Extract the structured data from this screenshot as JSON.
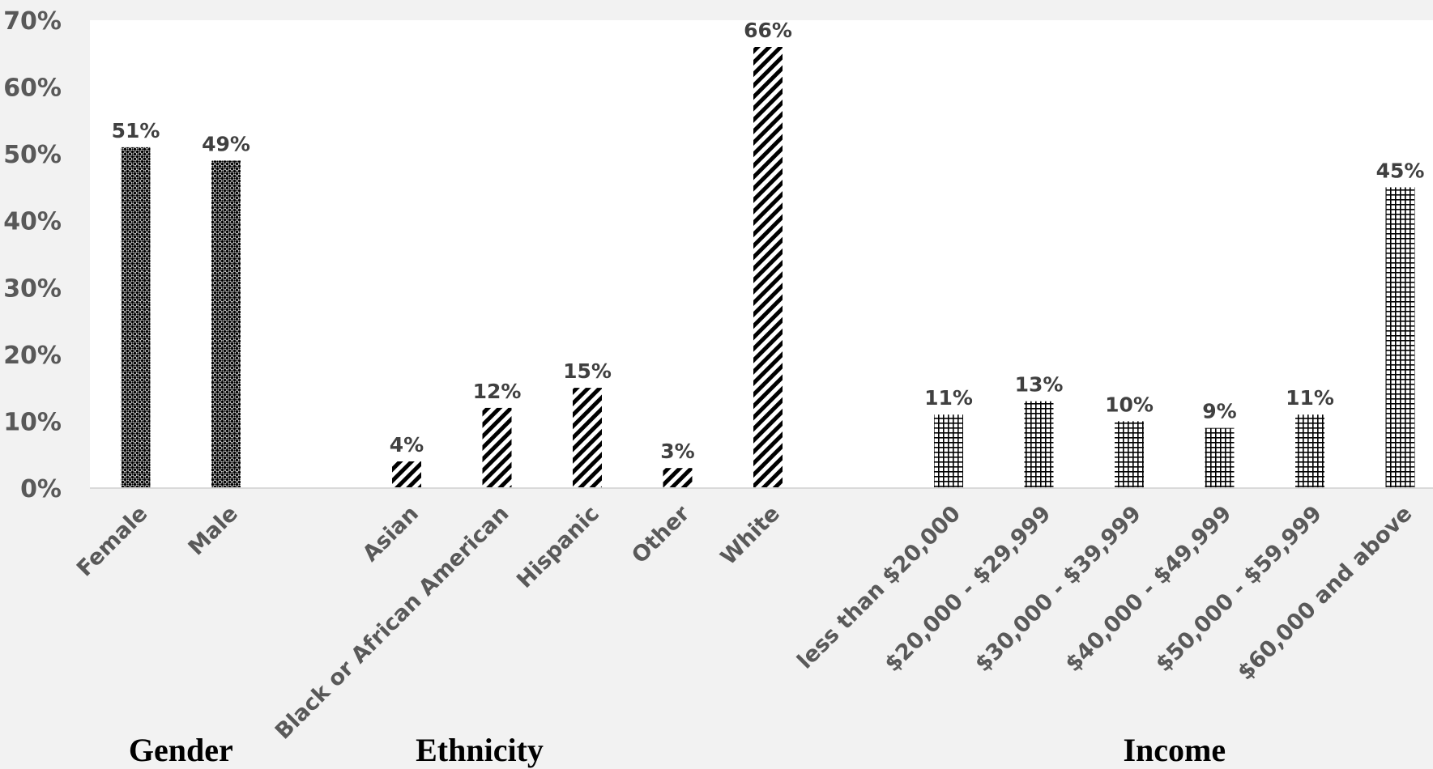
{
  "chart_data": {
    "type": "bar",
    "categories": [
      "Female",
      "Male",
      "Asian",
      "Black or African American",
      "Hispanic",
      "Other",
      "White",
      "less than $20,000",
      "$20,000 - $29,999",
      "$30,000 - $39,999",
      "$40,000 - $49,999",
      "$50,000 - $59,999",
      "$60,000 and above"
    ],
    "values": [
      51,
      49,
      4,
      12,
      15,
      3,
      66,
      11,
      13,
      10,
      9,
      11,
      45
    ],
    "data_labels": [
      "51%",
      "49%",
      "4%",
      "12%",
      "15%",
      "3%",
      "66%",
      "11%",
      "13%",
      "10%",
      "9%",
      "11%",
      "45%"
    ],
    "groups": [
      {
        "name": "Gender",
        "categories": [
          "Female",
          "Male"
        ],
        "pattern": "dots"
      },
      {
        "name": "Ethnicity",
        "categories": [
          "Asian",
          "Black or African American",
          "Hispanic",
          "Other",
          "White"
        ],
        "pattern": "diagonal-stripes"
      },
      {
        "name": "Income",
        "categories": [
          "less than $20,000",
          "$20,000 - $29,999",
          "$30,000 - $39,999",
          "$40,000 - $49,999",
          "$50,000 - $59,999",
          "$60,000 and above"
        ],
        "pattern": "grid"
      }
    ],
    "y_ticks": [
      "0%",
      "10%",
      "20%",
      "30%",
      "40%",
      "50%",
      "60%",
      "70%"
    ],
    "ylim": [
      0,
      70
    ],
    "unit": "%",
    "grid": false,
    "title": "",
    "xlabel": "",
    "ylabel": "",
    "colors": {
      "bar": "#000000",
      "plot_background": "#ffffff",
      "page_background": "#f2f2f2",
      "axis_line": "#d9d9d9"
    }
  }
}
